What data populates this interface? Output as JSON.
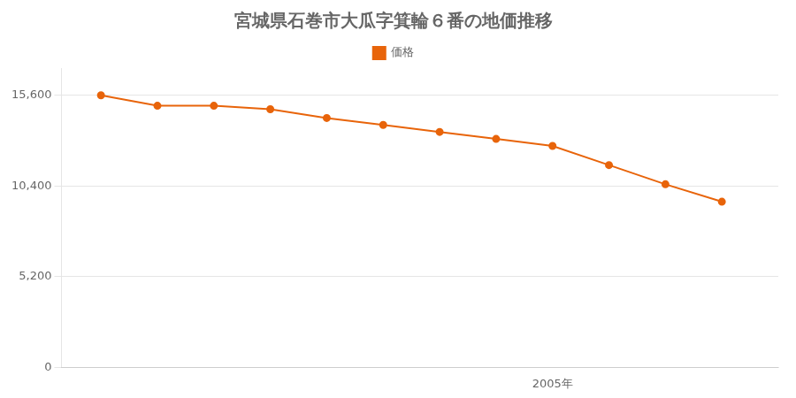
{
  "chart_data": {
    "type": "line",
    "title": "宮城県石巻市大瓜字箕輪６番の地価推移",
    "x": [
      1997,
      1998,
      1999,
      2000,
      2001,
      2002,
      2003,
      2004,
      2005,
      2006,
      2007,
      2008
    ],
    "series": [
      {
        "name": "価格",
        "color": "#e8640a",
        "marker": "circle",
        "values": [
          15600,
          15000,
          15000,
          14800,
          14300,
          13900,
          13500,
          13100,
          12700,
          11600,
          10500,
          9500
        ]
      }
    ],
    "xlim": [
      1996.3,
      2009.0
    ],
    "xticks": [
      {
        "value": 2005,
        "label": "2005年"
      }
    ],
    "ylim": [
      0,
      17160
    ],
    "yticks": [
      0,
      {
        "value": 5200,
        "label": "5,200"
      },
      {
        "value": 10400,
        "label": "10,400"
      },
      {
        "value": 15600,
        "label": "15,600"
      }
    ],
    "grid": "y",
    "legend": "top"
  }
}
